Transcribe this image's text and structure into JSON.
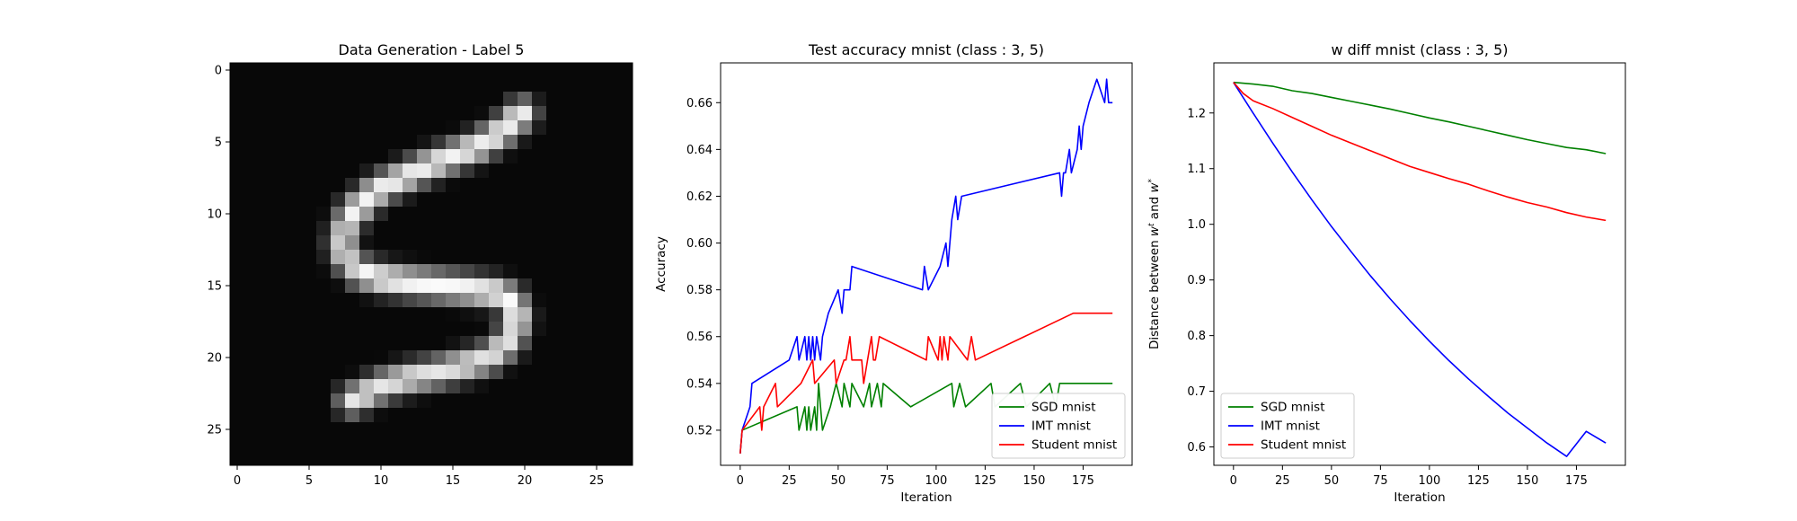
{
  "chart_data": [
    {
      "type": "heatmap",
      "title": "Data Generation - Label 5",
      "colormap": "gray",
      "shape": [
        28,
        28
      ],
      "xticks": [
        "0",
        "5",
        "10",
        "15",
        "20",
        "25"
      ],
      "yticks": [
        "0",
        "5",
        "10",
        "15",
        "20",
        "25"
      ],
      "xlim": [
        -0.5,
        27.5
      ],
      "ylim": [
        27.5,
        -0.5
      ],
      "background_level": 0.03,
      "strokes": [
        {
          "name": "top-bar",
          "points": [
            [
              19.8,
              3
            ],
            [
              18.5,
              4.2
            ],
            [
              17,
              5.2
            ],
            [
              15,
              6
            ],
            [
              13,
              6.8
            ],
            [
              11.5,
              7.5
            ],
            [
              10,
              8.2
            ],
            [
              9,
              9
            ],
            [
              8,
              10
            ]
          ],
          "peak": 0.95
        },
        {
          "name": "left-vertical",
          "points": [
            [
              8,
              10
            ],
            [
              7.5,
              11
            ],
            [
              7.3,
              12
            ],
            [
              7.5,
              13
            ],
            [
              8.5,
              14
            ]
          ],
          "peak": 0.85
        },
        {
          "name": "middle-bar",
          "points": [
            [
              8.5,
              14
            ],
            [
              10,
              14.5
            ],
            [
              12,
              14.8
            ],
            [
              14,
              15
            ],
            [
              16,
              15.2
            ],
            [
              18,
              15.5
            ],
            [
              19,
              16
            ],
            [
              19.4,
              17
            ]
          ],
          "peak": 0.98
        },
        {
          "name": "right-vertical",
          "points": [
            [
              19.4,
              17
            ],
            [
              19.3,
              18
            ],
            [
              18.8,
              19
            ],
            [
              17.5,
              20
            ],
            [
              16,
              20.5
            ],
            [
              14,
              21
            ],
            [
              12,
              21.4
            ],
            [
              10,
              22
            ],
            [
              9,
              22.5
            ],
            [
              8,
              23
            ]
          ],
          "peak": 0.9
        }
      ]
    },
    {
      "type": "line",
      "title": "Test accuracy mnist (class : 3, 5)",
      "xlabel": "Iteration",
      "ylabel": "Accuracy",
      "xlim": [
        -10,
        200
      ],
      "ylim": [
        0.505,
        0.677
      ],
      "xticks": [
        0,
        25,
        50,
        75,
        100,
        125,
        150,
        175
      ],
      "yticks": [
        0.52,
        0.54,
        0.56,
        0.58,
        0.6,
        0.62,
        0.64,
        0.66
      ],
      "legend_position": "lower right",
      "series": [
        {
          "name": "SGD mnist",
          "color": "#008000",
          "step_points": [
            [
              0,
              0.51
            ],
            [
              1,
              0.52
            ],
            [
              29,
              0.53
            ],
            [
              30,
              0.52
            ],
            [
              33,
              0.53
            ],
            [
              34,
              0.52
            ],
            [
              35,
              0.53
            ],
            [
              36,
              0.52
            ],
            [
              38,
              0.53
            ],
            [
              39,
              0.52
            ],
            [
              40,
              0.54
            ],
            [
              41,
              0.53
            ],
            [
              42,
              0.52
            ],
            [
              46,
              0.53
            ],
            [
              49,
              0.54
            ],
            [
              52,
              0.53
            ],
            [
              53,
              0.54
            ],
            [
              56,
              0.53
            ],
            [
              57,
              0.54
            ],
            [
              63,
              0.53
            ],
            [
              66,
              0.54
            ],
            [
              67,
              0.53
            ],
            [
              70,
              0.54
            ],
            [
              72,
              0.53
            ],
            [
              73,
              0.54
            ],
            [
              87,
              0.53
            ],
            [
              108,
              0.54
            ],
            [
              109,
              0.53
            ],
            [
              112,
              0.54
            ],
            [
              115,
              0.53
            ],
            [
              128,
              0.54
            ],
            [
              130,
              0.53
            ],
            [
              143,
              0.54
            ],
            [
              146,
              0.53
            ],
            [
              158,
              0.54
            ],
            [
              161,
              0.53
            ],
            [
              163,
              0.54
            ],
            [
              190,
              0.54
            ]
          ]
        },
        {
          "name": "IMT mnist",
          "color": "#0000ff",
          "step_points": [
            [
              0,
              0.51
            ],
            [
              1,
              0.52
            ],
            [
              5,
              0.53
            ],
            [
              6,
              0.54
            ],
            [
              25,
              0.55
            ],
            [
              29,
              0.56
            ],
            [
              30,
              0.55
            ],
            [
              33,
              0.56
            ],
            [
              34,
              0.55
            ],
            [
              35,
              0.56
            ],
            [
              36,
              0.55
            ],
            [
              37,
              0.56
            ],
            [
              38,
              0.55
            ],
            [
              39,
              0.56
            ],
            [
              41,
              0.55
            ],
            [
              42,
              0.56
            ],
            [
              45,
              0.57
            ],
            [
              50,
              0.58
            ],
            [
              52,
              0.57
            ],
            [
              53,
              0.58
            ],
            [
              56,
              0.58
            ],
            [
              57,
              0.59
            ],
            [
              93,
              0.58
            ],
            [
              94,
              0.59
            ],
            [
              96,
              0.58
            ],
            [
              102,
              0.59
            ],
            [
              105,
              0.6
            ],
            [
              106,
              0.59
            ],
            [
              107,
              0.6
            ],
            [
              108,
              0.61
            ],
            [
              110,
              0.62
            ],
            [
              111,
              0.61
            ],
            [
              113,
              0.62
            ],
            [
              163,
              0.63
            ],
            [
              164,
              0.62
            ],
            [
              165,
              0.63
            ],
            [
              166,
              0.63
            ],
            [
              168,
              0.64
            ],
            [
              169,
              0.63
            ],
            [
              172,
              0.64
            ],
            [
              173,
              0.65
            ],
            [
              174,
              0.64
            ],
            [
              175,
              0.65
            ],
            [
              178,
              0.66
            ],
            [
              182,
              0.67
            ],
            [
              186,
              0.66
            ],
            [
              187,
              0.67
            ],
            [
              188,
              0.66
            ],
            [
              190,
              0.66
            ]
          ]
        },
        {
          "name": "Student mnist",
          "color": "#ff0000",
          "step_points": [
            [
              0,
              0.51
            ],
            [
              1,
              0.52
            ],
            [
              10,
              0.53
            ],
            [
              11,
              0.52
            ],
            [
              12,
              0.53
            ],
            [
              18,
              0.54
            ],
            [
              19,
              0.53
            ],
            [
              31,
              0.54
            ],
            [
              37,
              0.55
            ],
            [
              38,
              0.54
            ],
            [
              48,
              0.55
            ],
            [
              49,
              0.54
            ],
            [
              53,
              0.55
            ],
            [
              54,
              0.55
            ],
            [
              56,
              0.56
            ],
            [
              57,
              0.55
            ],
            [
              62,
              0.55
            ],
            [
              63,
              0.54
            ],
            [
              65,
              0.55
            ],
            [
              67,
              0.56
            ],
            [
              68,
              0.55
            ],
            [
              69,
              0.55
            ],
            [
              71,
              0.56
            ],
            [
              95,
              0.55
            ],
            [
              96,
              0.56
            ],
            [
              101,
              0.55
            ],
            [
              102,
              0.56
            ],
            [
              103,
              0.55
            ],
            [
              104,
              0.56
            ],
            [
              106,
              0.55
            ],
            [
              107,
              0.56
            ],
            [
              116,
              0.55
            ],
            [
              118,
              0.56
            ],
            [
              120,
              0.55
            ],
            [
              145,
              0.56
            ],
            [
              170,
              0.57
            ],
            [
              190,
              0.57
            ]
          ]
        }
      ]
    },
    {
      "type": "line",
      "title": "w diff mnist (class : 3, 5)",
      "xlabel": "Iteration",
      "ylabel": "Distance between w^t and w^*",
      "xlim": [
        -10,
        200
      ],
      "ylim": [
        0.567,
        1.29
      ],
      "xticks": [
        0,
        25,
        50,
        75,
        100,
        125,
        150,
        175
      ],
      "yticks": [
        0.6,
        0.7,
        0.8,
        0.9,
        1.0,
        1.1,
        1.2
      ],
      "legend_position": "lower left",
      "series": [
        {
          "name": "SGD mnist",
          "color": "#008000",
          "points": [
            [
              0,
              1.255
            ],
            [
              10,
              1.252
            ],
            [
              20,
              1.248
            ],
            [
              30,
              1.24
            ],
            [
              40,
              1.235
            ],
            [
              50,
              1.228
            ],
            [
              60,
              1.221
            ],
            [
              70,
              1.214
            ],
            [
              80,
              1.207
            ],
            [
              90,
              1.199
            ],
            [
              100,
              1.191
            ],
            [
              110,
              1.184
            ],
            [
              120,
              1.176
            ],
            [
              130,
              1.168
            ],
            [
              140,
              1.16
            ],
            [
              150,
              1.152
            ],
            [
              160,
              1.145
            ],
            [
              170,
              1.138
            ],
            [
              180,
              1.134
            ],
            [
              190,
              1.127
            ]
          ]
        },
        {
          "name": "IMT mnist",
          "color": "#0000ff",
          "points": [
            [
              0,
              1.255
            ],
            [
              10,
              1.2
            ],
            [
              20,
              1.146
            ],
            [
              30,
              1.094
            ],
            [
              40,
              1.044
            ],
            [
              50,
              0.996
            ],
            [
              60,
              0.951
            ],
            [
              70,
              0.907
            ],
            [
              80,
              0.866
            ],
            [
              90,
              0.827
            ],
            [
              100,
              0.79
            ],
            [
              110,
              0.755
            ],
            [
              120,
              0.722
            ],
            [
              130,
              0.691
            ],
            [
              140,
              0.661
            ],
            [
              150,
              0.634
            ],
            [
              160,
              0.607
            ],
            [
              170,
              0.583
            ],
            [
              180,
              0.628
            ],
            [
              190,
              0.607
            ]
          ]
        },
        {
          "name": "Student mnist",
          "color": "#ff0000",
          "points": [
            [
              0,
              1.255
            ],
            [
              5,
              1.235
            ],
            [
              10,
              1.222
            ],
            [
              20,
              1.208
            ],
            [
              30,
              1.192
            ],
            [
              40,
              1.176
            ],
            [
              50,
              1.16
            ],
            [
              60,
              1.146
            ],
            [
              70,
              1.132
            ],
            [
              80,
              1.118
            ],
            [
              90,
              1.104
            ],
            [
              100,
              1.093
            ],
            [
              110,
              1.082
            ],
            [
              120,
              1.072
            ],
            [
              130,
              1.06
            ],
            [
              140,
              1.049
            ],
            [
              150,
              1.039
            ],
            [
              160,
              1.031
            ],
            [
              170,
              1.021
            ],
            [
              180,
              1.013
            ],
            [
              190,
              1.007
            ]
          ]
        }
      ]
    }
  ]
}
